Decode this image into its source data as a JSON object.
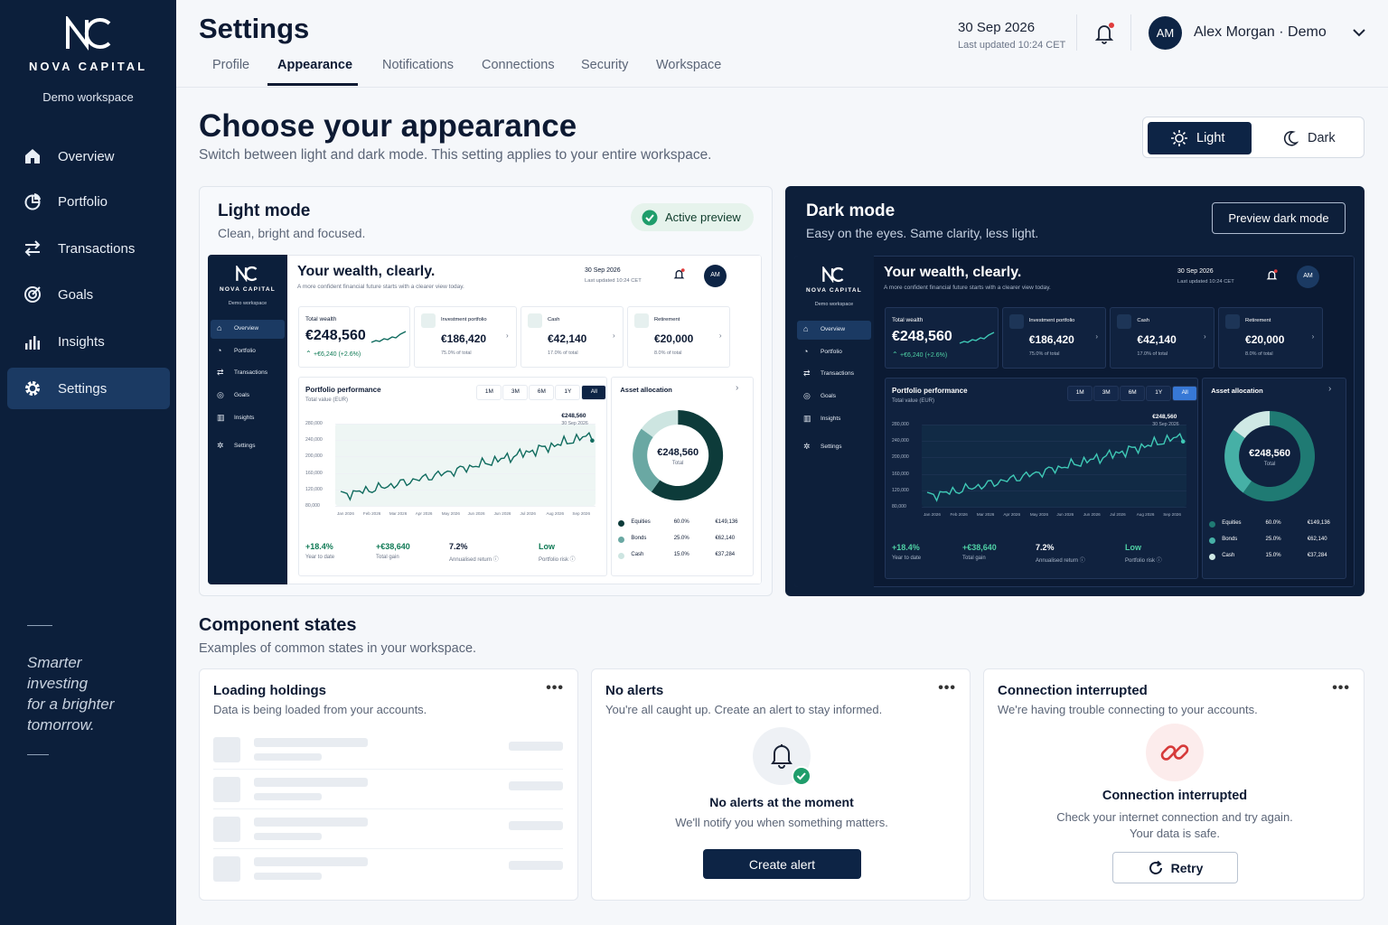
{
  "brand": {
    "name": "NOVA CAPITAL",
    "workspace": "Demo workspace",
    "monogram": "NC"
  },
  "sidebar": {
    "items": [
      {
        "label": "Overview",
        "icon": "home-icon"
      },
      {
        "label": "Portfolio",
        "icon": "pie-chart-icon"
      },
      {
        "label": "Transactions",
        "icon": "arrows-swap-icon"
      },
      {
        "label": "Goals",
        "icon": "target-icon"
      },
      {
        "label": "Insights",
        "icon": "bar-chart-icon"
      },
      {
        "label": "Settings",
        "icon": "gear-icon",
        "active": true
      }
    ],
    "tagline": [
      "Smarter",
      "investing",
      "for a brighter",
      "tomorrow."
    ]
  },
  "header": {
    "title": "Settings",
    "tabs": [
      "Profile",
      "Appearance",
      "Notifications",
      "Connections",
      "Security",
      "Workspace"
    ],
    "active_tab": "Appearance",
    "date": "30 Sep 2026",
    "last_updated": "Last updated 10:24 CET",
    "user": {
      "initials": "AM",
      "name": "Alex Morgan · Demo"
    }
  },
  "hero": {
    "title": "Choose your appearance",
    "subtitle": "Switch between light and dark mode. This setting applies to your entire workspace.",
    "toggle": {
      "light": "Light",
      "dark": "Dark",
      "selected": "Light"
    }
  },
  "light_card": {
    "title": "Light mode",
    "subtitle": "Clean, bright and focused.",
    "badge": "Active preview"
  },
  "dark_card": {
    "title": "Dark mode",
    "subtitle": "Easy on the eyes. Same clarity, less light.",
    "button": "Preview dark mode"
  },
  "preview": {
    "headline": "Your wealth, clearly.",
    "tagline": "A more confident financial future starts with a clearer view today.",
    "date": "30 Sep 2026",
    "updated": "Last updated 10:24 CET",
    "initials": "AM",
    "nav": [
      "Overview",
      "Portfolio",
      "Transactions",
      "Goals",
      "Insights",
      "Settings"
    ],
    "total_wealth": {
      "label": "Total wealth",
      "value": "€248,560",
      "change": "+€6,240 (+2.6%)"
    },
    "stats": [
      {
        "label": "Investment portfolio",
        "value": "€186,420",
        "sub": "75.0% of total"
      },
      {
        "label": "Cash",
        "value": "€42,140",
        "sub": "17.0% of total"
      },
      {
        "label": "Retirement",
        "value": "€20,000",
        "sub": "8.0% of total"
      }
    ],
    "performance": {
      "title": "Portfolio performance",
      "subtitle": "Total value (EUR)",
      "ranges": [
        "1M",
        "3M",
        "6M",
        "1Y",
        "All"
      ],
      "active_range": "All",
      "callout_value": "€248,560",
      "callout_date": "30 Sep 2026",
      "y_ticks": [
        "280,000",
        "240,000",
        "200,000",
        "160,000",
        "120,000",
        "80,000"
      ],
      "x_ticks": [
        "Jan 2026",
        "Feb 2026",
        "Mar 2026",
        "Apr 2026",
        "May 2026",
        "Jun 2026",
        "Jun 2026",
        "Jul 2026",
        "Aug 2026",
        "Sep 2026"
      ],
      "kpis": [
        {
          "value": "+18.4%",
          "label": "Year to date"
        },
        {
          "value": "+€38,640",
          "label": "Total gain"
        },
        {
          "value": "7.2%",
          "label": "Annualised return ⓘ"
        },
        {
          "value": "Low",
          "label": "Portfolio risk ⓘ"
        }
      ]
    },
    "allocation": {
      "title": "Asset allocation",
      "center_value": "€248,560",
      "center_label": "Total",
      "rows": [
        {
          "name": "Equities",
          "pct": "60.0%",
          "amount": "€149,136",
          "share": 0.6
        },
        {
          "name": "Bonds",
          "pct": "25.0%",
          "amount": "€62,140",
          "share": 0.25
        },
        {
          "name": "Cash",
          "pct": "15.0%",
          "amount": "€37,284",
          "share": 0.15
        }
      ]
    }
  },
  "component_states": {
    "title": "Component states",
    "subtitle": "Examples of common states in your workspace.",
    "loading": {
      "title": "Loading holdings",
      "subtitle": "Data is being loaded from your accounts."
    },
    "no_alerts": {
      "title": "No alerts",
      "subtitle": "You're all caught up. Create an alert to stay informed.",
      "heading": "No alerts at the moment",
      "body": "We'll notify you when something matters.",
      "button": "Create alert"
    },
    "connection": {
      "title": "Connection interrupted",
      "subtitle": "We're having trouble connecting to your accounts.",
      "heading": "Connection interrupted",
      "body1": "Check your internet connection and try again.",
      "body2": "Your data is safe.",
      "button": "Retry"
    }
  },
  "colors": {
    "navy": "#0c1f3b",
    "accent_green": "#1f9d6b",
    "teal": "#0f5a52",
    "alert_red": "#e03c3c"
  }
}
